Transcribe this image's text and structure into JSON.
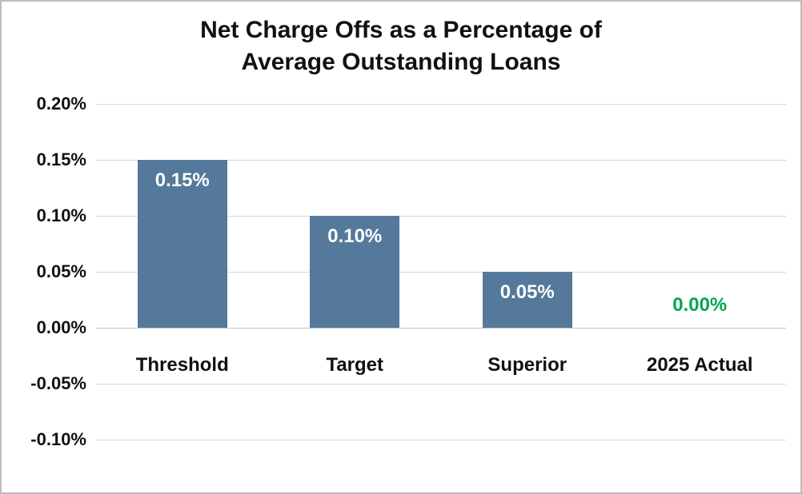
{
  "title": {
    "line1": "Net Charge Offs as a Percentage of",
    "line2": "Average Outstanding Loans"
  },
  "chart_data": {
    "type": "bar",
    "title": "Net Charge Offs as a Percentage of Average Outstanding Loans",
    "categories": [
      "Threshold",
      "Target",
      "Superior",
      "2025 Actual"
    ],
    "values": [
      0.15,
      0.1,
      0.05,
      0.0
    ],
    "bar_labels": [
      "0.15%",
      "0.10%",
      "0.05%",
      "0.00%"
    ],
    "y_ticks": [
      "0.20%",
      "0.15%",
      "0.10%",
      "0.05%",
      "0.00%",
      "-0.05%",
      "-0.10%"
    ],
    "y_tick_values": [
      0.2,
      0.15,
      0.1,
      0.05,
      0.0,
      -0.05,
      -0.1
    ],
    "ylim": [
      -0.1,
      0.2
    ],
    "xlabel": "",
    "ylabel": "",
    "grid": true,
    "legend": "none",
    "bar_color": "#55799a",
    "zero_value_label_color": "#00a651",
    "bar_label_color_inside": "#ffffff"
  }
}
